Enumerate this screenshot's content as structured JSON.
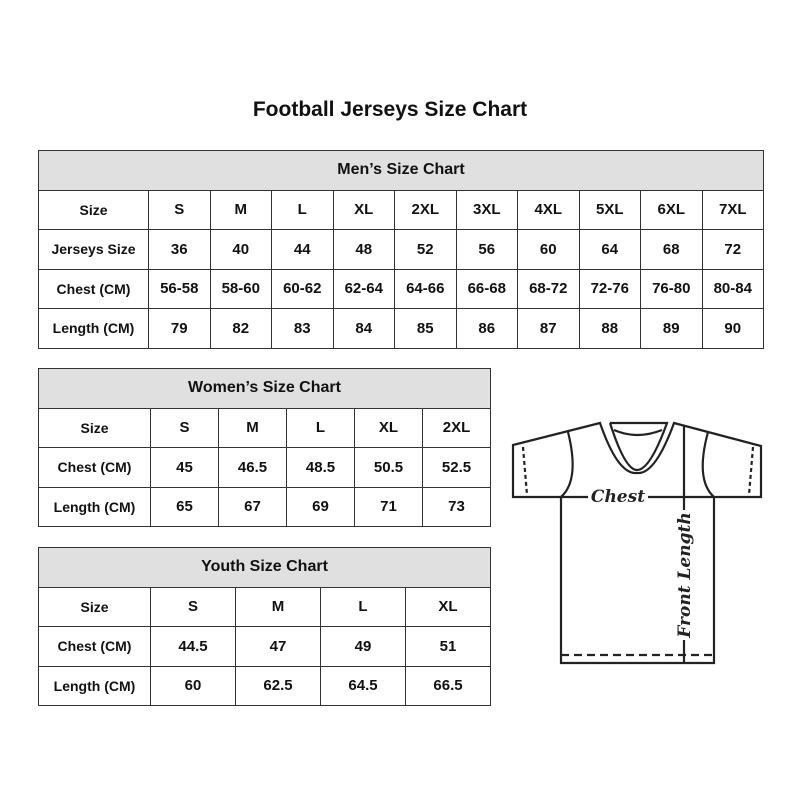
{
  "title": "Football Jerseys Size Chart",
  "men": {
    "title": "Men’s Size Chart",
    "rows": [
      {
        "label": "Size",
        "values": [
          "S",
          "M",
          "L",
          "XL",
          "2XL",
          "3XL",
          "4XL",
          "5XL",
          "6XL",
          "7XL"
        ]
      },
      {
        "label": "Jerseys Size",
        "values": [
          "36",
          "40",
          "44",
          "48",
          "52",
          "56",
          "60",
          "64",
          "68",
          "72"
        ]
      },
      {
        "label": "Chest (CM)",
        "values": [
          "56-58",
          "58-60",
          "60-62",
          "62-64",
          "64-66",
          "66-68",
          "68-72",
          "72-76",
          "76-80",
          "80-84"
        ]
      },
      {
        "label": "Length (CM)",
        "values": [
          "79",
          "82",
          "83",
          "84",
          "85",
          "86",
          "87",
          "88",
          "89",
          "90"
        ]
      }
    ]
  },
  "women": {
    "title": "Women’s Size Chart",
    "rows": [
      {
        "label": "Size",
        "values": [
          "S",
          "M",
          "L",
          "XL",
          "2XL"
        ]
      },
      {
        "label": "Chest (CM)",
        "values": [
          "45",
          "46.5",
          "48.5",
          "50.5",
          "52.5"
        ]
      },
      {
        "label": "Length (CM)",
        "values": [
          "65",
          "67",
          "69",
          "71",
          "73"
        ]
      }
    ]
  },
  "youth": {
    "title": "Youth Size Chart",
    "rows": [
      {
        "label": "Size",
        "values": [
          "S",
          "M",
          "L",
          "XL"
        ]
      },
      {
        "label": "Chest (CM)",
        "values": [
          "44.5",
          "47",
          "49",
          "51"
        ]
      },
      {
        "label": "Length (CM)",
        "values": [
          "60",
          "62.5",
          "64.5",
          "66.5"
        ]
      }
    ]
  },
  "diagram": {
    "chest_label": "Chest",
    "length_label": "Front Length"
  },
  "colors": {
    "header_bg": "#e0e0e0",
    "border": "#333333"
  }
}
